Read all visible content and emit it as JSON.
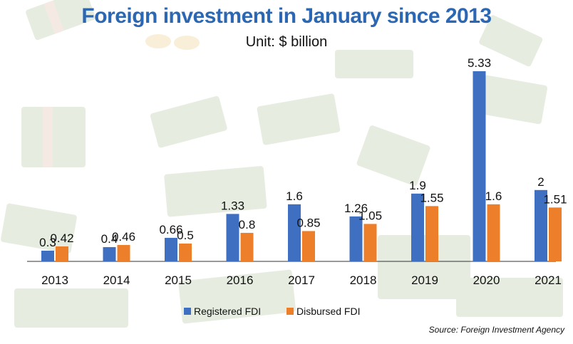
{
  "chart_data": {
    "type": "bar",
    "title": "Foreign investment in January since 2013",
    "subtitle": "Unit: $ billion",
    "categories": [
      "2013",
      "2014",
      "2015",
      "2016",
      "2017",
      "2018",
      "2019",
      "2020",
      "2021"
    ],
    "series": [
      {
        "name": "Registered FDI",
        "color": "#3f6fc1",
        "values": [
          0.3,
          0.4,
          0.66,
          1.33,
          1.6,
          1.26,
          1.9,
          5.33,
          2
        ],
        "labels": [
          "0.3",
          "0.4",
          "0.66",
          "1.33",
          "1.6",
          "1.26",
          "1.9",
          "5.33",
          "2"
        ]
      },
      {
        "name": "Disbursed FDI",
        "color": "#ee7f2a",
        "values": [
          0.42,
          0.46,
          0.5,
          0.8,
          0.85,
          1.05,
          1.55,
          1.6,
          1.51
        ],
        "labels": [
          "0.42",
          "0.46",
          "0.5",
          "0.8",
          "0.85",
          "1.05",
          "1.55",
          "1.6",
          "1.51"
        ]
      }
    ],
    "ylim": [
      0,
      5.33
    ],
    "xlabel": "",
    "ylabel": "",
    "legend": "bottom-center",
    "grid": false
  },
  "source": "Source: Foreign Investment Agency",
  "colors": {
    "title": "#2b67b3",
    "axis": "#333333",
    "money": "#c8d6ba"
  }
}
